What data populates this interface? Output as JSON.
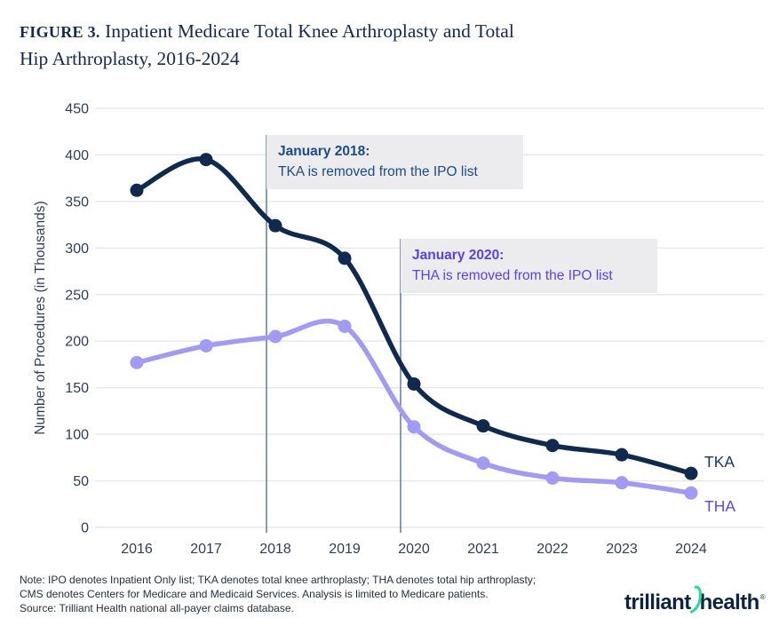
{
  "figure": {
    "label": "Figure 3.",
    "title_line1": "Inpatient Medicare Total Knee Arthroplasty and Total",
    "title_line2": "Hip Arthroplasty, 2016-2024"
  },
  "chart_data": {
    "type": "line",
    "title": "Inpatient Medicare Total Knee Arthroplasty and Total Hip Arthroplasty, 2016-2024",
    "xlabel": "",
    "ylabel": "Number of Procedures (in Thousands)",
    "x": [
      2016,
      2017,
      2018,
      2019,
      2020,
      2021,
      2022,
      2023,
      2024
    ],
    "ylim": [
      0,
      450
    ],
    "yticks": [
      0,
      50,
      100,
      150,
      200,
      250,
      300,
      350,
      400,
      450
    ],
    "grid": true,
    "legend_position": "line-end-labels",
    "series": [
      {
        "name": "TKA",
        "color": "#10294F",
        "values": [
          362,
          395,
          324,
          289,
          154,
          109,
          88,
          78,
          58
        ]
      },
      {
        "name": "THA",
        "color": "#A29BF2",
        "values": [
          177,
          195,
          205,
          216,
          108,
          69,
          53,
          48,
          37
        ]
      }
    ],
    "annotations": [
      {
        "year": 2018,
        "title": "January 2018:",
        "text": "TKA is removed from the IPO list",
        "color": "#1B4C87"
      },
      {
        "year": 2020,
        "title": "January 2020:",
        "text": "THA is removed from the IPO list",
        "color": "#5843DC"
      }
    ]
  },
  "colors": {
    "grid": "#E5E7EA",
    "axis_text": "#2E3D5A",
    "vline": "#44688A",
    "callout_bg": "#ECECEE",
    "title": "#13294E",
    "notes": "#24303F",
    "logo_navy": "#0E2343",
    "logo_green": "#35D69A"
  },
  "notes": {
    "line1": "Note: IPO denotes Inpatient Only list; TKA denotes total knee arthroplasty; THA denotes total hip arthroplasty;",
    "line2": "CMS denotes Centers for Medicare and Medicaid Services. Analysis is limited to Medicare patients.",
    "line3": "Source: Trilliant Health national all-payer claims database."
  },
  "logo": {
    "word1": "trilliant",
    "word2": "health",
    "mark": "®"
  }
}
